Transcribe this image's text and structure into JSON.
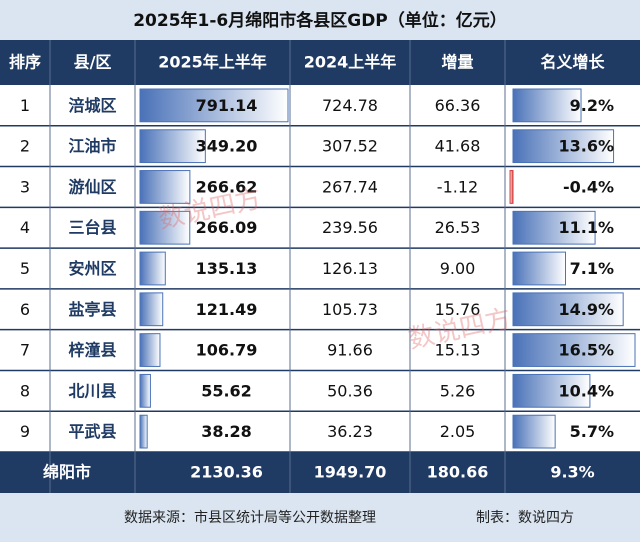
{
  "header": {
    "title": "2025年1-6月绵阳市各县区GDP（单位：亿元）"
  },
  "table": {
    "columns": [
      "排序",
      "县/区",
      "2025年上半年",
      "2024上半年",
      "增量",
      "名义增长"
    ],
    "rows": [
      [
        "1",
        "涪城区",
        "791.14",
        "724.78",
        "66.36",
        "9.2%"
      ],
      [
        "2",
        "江油市",
        "349.20",
        "307.52",
        "41.68",
        "13.6%"
      ],
      [
        "3",
        "游仙区",
        "266.62",
        "267.74",
        "-1.12",
        "-0.4%"
      ],
      [
        "4",
        "三台县",
        "266.09",
        "239.56",
        "26.53",
        "11.1%"
      ],
      [
        "5",
        "安州区",
        "135.13",
        "126.13",
        "9.00",
        "7.1%"
      ],
      [
        "6",
        "盐亭县",
        "121.49",
        "105.73",
        "15.76",
        "14.9%"
      ],
      [
        "7",
        "梓潼县",
        "106.79",
        "91.66",
        "15.13",
        "16.5%"
      ],
      [
        "8",
        "北川县",
        "55.62",
        "50.36",
        "5.26",
        "10.4%"
      ],
      [
        "9",
        "平武县",
        "38.28",
        "36.23",
        "2.05",
        "5.7%"
      ]
    ],
    "total": [
      "绵阳市",
      "2130.36",
      "1949.70",
      "180.66",
      "9.3%"
    ]
  },
  "footer": {
    "source": "数据来源：市县区统计局等公开数据整理",
    "maker": "制表：数说四方"
  },
  "watermark": [
    "数说四方",
    "数说四方"
  ]
}
